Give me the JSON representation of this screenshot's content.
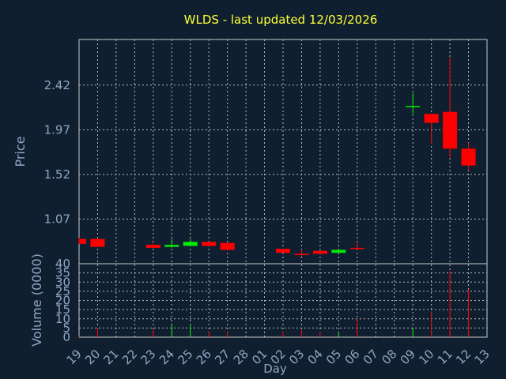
{
  "chart_data": {
    "type": "candlestick",
    "title": "WLDS - last updated 12/03/2026",
    "xlabel": "Day",
    "price_label": "Price",
    "volume_label": "Volume (0000)",
    "price_ticks": [
      "2.42",
      "1.97",
      "1.52",
      "1.07"
    ],
    "price_tick_values": [
      2.42,
      1.97,
      1.52,
      1.07
    ],
    "price_range": [
      0.62,
      2.88
    ],
    "volume_ticks": [
      "40",
      "35",
      "30",
      "25",
      "20",
      "15",
      "10",
      "5",
      "0"
    ],
    "volume_tick_values": [
      40,
      35,
      30,
      25,
      20,
      15,
      10,
      5,
      0
    ],
    "volume_range": [
      0,
      40
    ],
    "x_ticks": [
      "19",
      "20",
      "21",
      "22",
      "23",
      "24",
      "25",
      "26",
      "27",
      "28",
      "01",
      "02",
      "03",
      "04",
      "05",
      "06",
      "07",
      "08",
      "09",
      "10",
      "11",
      "12",
      "13"
    ],
    "candles": [
      {
        "day": "19",
        "open": 0.87,
        "high": 0.88,
        "low": 0.82,
        "close": 0.82,
        "volume": 0.5
      },
      {
        "day": "20",
        "open": 0.87,
        "high": 0.87,
        "low": 0.79,
        "close": 0.79,
        "volume": 5
      },
      {
        "day": "23",
        "open": 0.81,
        "high": 0.83,
        "low": 0.78,
        "close": 0.78,
        "volume": 4
      },
      {
        "day": "24",
        "open": 0.79,
        "high": 0.87,
        "low": 0.78,
        "close": 0.81,
        "volume": 7
      },
      {
        "day": "25",
        "open": 0.8,
        "high": 0.87,
        "low": 0.8,
        "close": 0.84,
        "volume": 7
      },
      {
        "day": "26",
        "open": 0.84,
        "high": 0.84,
        "low": 0.8,
        "close": 0.8,
        "volume": 3
      },
      {
        "day": "27",
        "open": 0.83,
        "high": 0.83,
        "low": 0.76,
        "close": 0.76,
        "volume": 3
      },
      {
        "day": "02",
        "open": 0.77,
        "high": 0.77,
        "low": 0.73,
        "close": 0.73,
        "volume": 3
      },
      {
        "day": "03",
        "open": 0.72,
        "high": 0.76,
        "low": 0.69,
        "close": 0.71,
        "volume": 4
      },
      {
        "day": "04",
        "open": 0.75,
        "high": 0.75,
        "low": 0.72,
        "close": 0.72,
        "volume": 3
      },
      {
        "day": "05",
        "open": 0.73,
        "high": 0.76,
        "low": 0.73,
        "close": 0.76,
        "volume": 3
      },
      {
        "day": "06",
        "open": 0.78,
        "high": 0.83,
        "low": 0.76,
        "close": 0.77,
        "volume": 10
      },
      {
        "day": "09",
        "open": 2.2,
        "high": 2.34,
        "low": 2.13,
        "close": 2.21,
        "volume": 5
      },
      {
        "day": "10",
        "open": 2.13,
        "high": 2.13,
        "low": 1.83,
        "close": 2.04,
        "volume": 14
      },
      {
        "day": "11",
        "open": 2.15,
        "high": 2.7,
        "low": 1.69,
        "close": 1.78,
        "volume": 36
      },
      {
        "day": "12",
        "open": 1.78,
        "high": 1.84,
        "low": 1.56,
        "close": 1.61,
        "volume": 26
      }
    ],
    "colors": {
      "up": "#00ee00",
      "down": "#ff0000",
      "background": "#0f1f30",
      "title": "#ffff33",
      "axis_text": "#8fa6c4"
    },
    "grid": true
  }
}
